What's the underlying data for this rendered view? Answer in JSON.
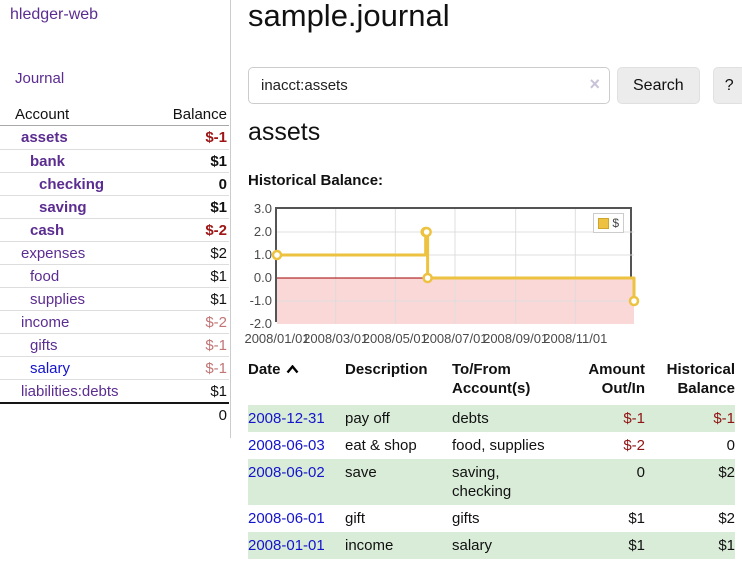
{
  "sidebar": {
    "brand": "hledger-web",
    "journal_link": "Journal",
    "table": {
      "headers": {
        "account": "Account",
        "balance": "Balance"
      },
      "rows": [
        {
          "account": "assets",
          "balance": "$-1",
          "indent": 0,
          "bold": true
        },
        {
          "account": "bank",
          "balance": "$1",
          "indent": 1,
          "bold": true
        },
        {
          "account": "checking",
          "balance": "0",
          "indent": 2,
          "bold": true
        },
        {
          "account": "saving",
          "balance": "$1",
          "indent": 2,
          "bold": true
        },
        {
          "account": "cash",
          "balance": "$-2",
          "indent": 1,
          "bold": true
        },
        {
          "account": "expenses",
          "balance": "$2",
          "indent": 0,
          "bold": false
        },
        {
          "account": "food",
          "balance": "$1",
          "indent": 1,
          "bold": false
        },
        {
          "account": "supplies",
          "balance": "$1",
          "indent": 1,
          "bold": false
        },
        {
          "account": "income",
          "balance": "$-2",
          "indent": 0,
          "bold": false
        },
        {
          "account": "gifts",
          "balance": "$-1",
          "indent": 1,
          "bold": false
        },
        {
          "account": "salary",
          "balance": "$-1",
          "indent": 1,
          "bold": false,
          "blue": true
        },
        {
          "account": "liabilities:debts",
          "balance": "$1",
          "indent": 0,
          "bold": false
        }
      ],
      "total": "0"
    }
  },
  "header": {
    "title": "sample.journal"
  },
  "search": {
    "value": "inacct:assets",
    "clear_icon": "×",
    "search_label": "Search",
    "help_label": "?"
  },
  "account": {
    "heading": "assets",
    "section_label": "Historical Balance:"
  },
  "chart_data": {
    "type": "line",
    "title": "Historical Balance",
    "step": true,
    "series": [
      {
        "name": "$",
        "color": "#edc240",
        "points": [
          [
            "2008-01-01",
            1.0
          ],
          [
            "2008-06-01",
            2.0
          ],
          [
            "2008-06-02",
            2.0
          ],
          [
            "2008-06-03",
            0.0
          ],
          [
            "2008-12-31",
            -1.0
          ]
        ]
      }
    ],
    "xlim": [
      "2008-01-01",
      "2008-12-31"
    ],
    "ylim": [
      -2.0,
      3.0
    ],
    "yticks": {
      "values": [
        3,
        2,
        1,
        0,
        -1,
        -2
      ],
      "labels": [
        "3.0",
        "2.0",
        "1.0",
        "0.0",
        "-1.0",
        "-2.0"
      ]
    },
    "xticks": {
      "values": [
        "2008-01-01",
        "2008-03-01",
        "2008-05-01",
        "2008-07-01",
        "2008-09-01",
        "2008-11-01"
      ],
      "labels": [
        "2008/01/01",
        "2008/03/01",
        "2008/05/01",
        "2008/07/01",
        "2008/09/01",
        "2008/11/01"
      ]
    },
    "legend": {
      "label": "$",
      "position": "top-right"
    },
    "grid": true,
    "negative_region": {
      "from": 0,
      "to": -2
    }
  },
  "register": {
    "headers": {
      "date": "Date",
      "sort_icon": "chevron-up",
      "description": "Description",
      "account": "To/From Account(s)",
      "amount": "Amount Out/In",
      "balance": "Historical Balance"
    },
    "rows": [
      {
        "date": "2008-12-31",
        "description": "pay off",
        "account": "debts",
        "amount": "$-1",
        "balance": "$-1"
      },
      {
        "date": "2008-06-03",
        "description": "eat & shop",
        "account": "food, supplies",
        "amount": "$-2",
        "balance": "0"
      },
      {
        "date": "2008-06-02",
        "description": "save",
        "account": "saving, checking",
        "amount": "0",
        "balance": "$2"
      },
      {
        "date": "2008-06-01",
        "description": "gift",
        "account": "gifts",
        "amount": "$1",
        "balance": "$2"
      },
      {
        "date": "2008-01-01",
        "description": "income",
        "account": "salary",
        "amount": "$1",
        "balance": "$1"
      }
    ]
  },
  "colors": {
    "link_purple": "#5c2d91",
    "link_blue": "#1414cc",
    "negative_strong": "#9e1515",
    "negative_muted": "#c17575",
    "register_negative": "#8f1414",
    "row_stripe_green": "#d9ecd8",
    "chart_series_yellow": "#edc240",
    "chart_zero_line": "#a00000",
    "chart_negative_fill": "#fbd8d8",
    "chart_border": "#545454",
    "chart_grid": "#dcdcdc"
  }
}
